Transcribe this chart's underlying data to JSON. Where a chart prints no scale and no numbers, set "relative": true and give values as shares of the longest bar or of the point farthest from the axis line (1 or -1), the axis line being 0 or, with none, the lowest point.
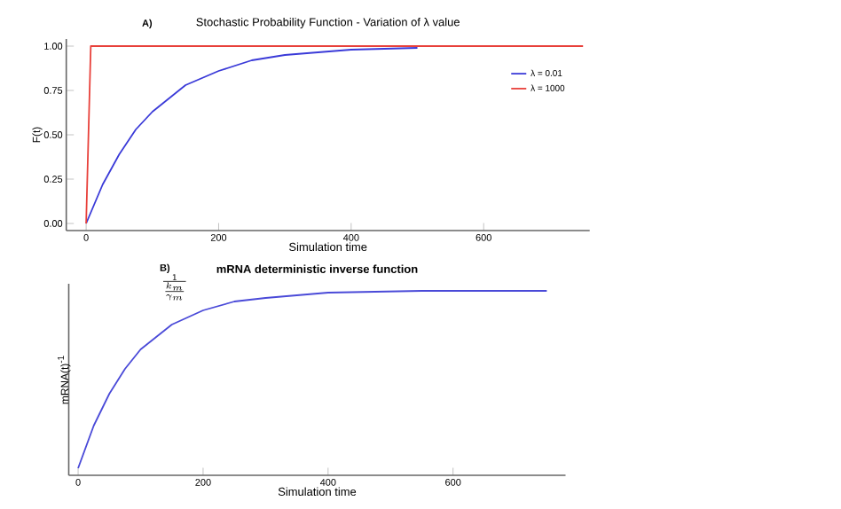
{
  "chart_data": [
    {
      "type": "line",
      "title": "Stochastic Probability Function - Variation of λ value",
      "xlabel": "Simulation time",
      "ylabel": "F(t)",
      "annotations": [
        "A)"
      ],
      "xlim": [
        -30,
        760
      ],
      "ylim": [
        -0.04,
        1.04
      ],
      "xticks": [
        0,
        200,
        400,
        600
      ],
      "yticks": [
        {
          "value": 0,
          "label": "0.00"
        },
        {
          "value": 0.25,
          "label": "0.25"
        },
        {
          "value": 0.5,
          "label": "0.50"
        },
        {
          "value": 0.75,
          "label": "0.75"
        },
        {
          "value": 1,
          "label": "1.00"
        }
      ],
      "legend": "right",
      "grid": false,
      "series": [
        {
          "name": "λ = 0.01",
          "color": "#3a3ad8",
          "x": [
            0,
            25,
            50,
            75,
            100,
            150,
            200,
            250,
            300,
            400,
            500
          ],
          "values": [
            0,
            0.22,
            0.39,
            0.53,
            0.63,
            0.78,
            0.86,
            0.92,
            0.95,
            0.98,
            0.99
          ]
        },
        {
          "name": "λ = 1000",
          "color": "#e8403a",
          "x": [
            0,
            7,
            750
          ],
          "values": [
            0,
            1,
            1
          ]
        }
      ]
    },
    {
      "type": "line",
      "title": "**mRNA deterministic inverse function**",
      "xlabel": "Simulation time",
      "ylabel": "mRNA(t)$^{-1}$",
      "annotations": [
        "B)",
        "\\frac{1}{\\frac{k_m}{\\gamma_m}}"
      ],
      "relative": true,
      "xlim": [
        -15,
        780
      ],
      "xticks": [
        0,
        200,
        400,
        600
      ],
      "grid": false,
      "series": [
        {
          "color": "#4a4ad8",
          "x": [
            0,
            25,
            50,
            75,
            100,
            150,
            200,
            250,
            300,
            400,
            550,
            750
          ],
          "values": [
            0,
            0.24,
            0.42,
            0.56,
            0.67,
            0.81,
            0.89,
            0.94,
            0.96,
            0.99,
            1.0,
            1.0
          ]
        }
      ]
    }
  ]
}
